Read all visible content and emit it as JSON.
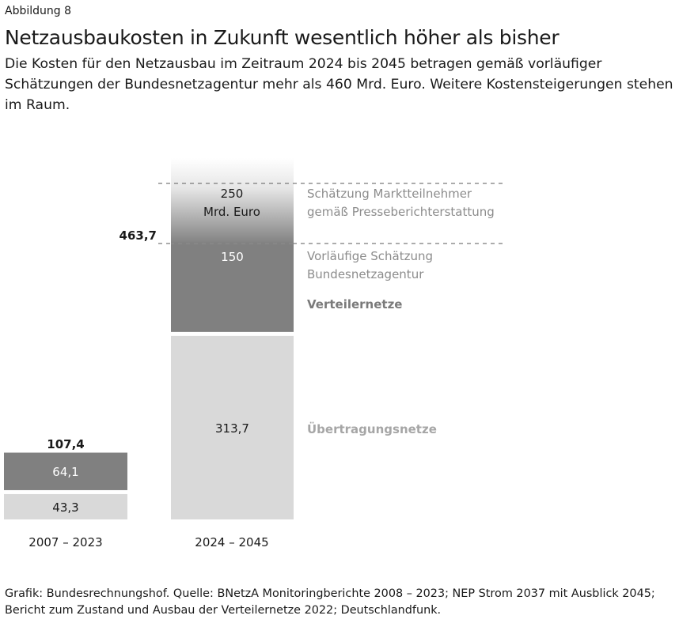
{
  "figure_label": "Abbildung 8",
  "title": "Netzausbaukosten in Zukunft wesentlich höher als bisher",
  "subtitle": "Die Kosten für den Netzausbau im Zeitraum 2024 bis 2045 betragen gemäß vorläufiger Schätzungen der Bundesnetzagentur mehr als 460 Mrd. Euro. Weitere Kostensteigerungen stehen im Raum.",
  "source": "Grafik: Bundesrechnungshof. Quelle: BNetzA Monitoringberichte 2008 – 2023; NEP Strom 2037 mit Ausblick 2045; Bericht zum Zustand und Ausbau der Verteilernetze 2022; Deutschlandfunk.",
  "colors": {
    "verteilernetze": "#808080",
    "uebertragungsnetze": "#d9d9d9",
    "label_gray": "#8c8c8c"
  },
  "chart_data": {
    "type": "bar",
    "stacked": true,
    "categories": [
      "2007 – 2023",
      "2024 – 2045"
    ],
    "series": [
      {
        "name": "Übertragungsnetze",
        "values": [
          43.3,
          313.7
        ],
        "labels": [
          "43,3",
          "313,7"
        ]
      },
      {
        "name": "Verteilernetze",
        "values": [
          64.1,
          150
        ],
        "labels": [
          "64,1",
          "150"
        ]
      }
    ],
    "totals": [
      "107,4",
      "463,7"
    ],
    "estimate": {
      "value": 250,
      "label": "250",
      "unit": "Mrd. Euro",
      "category": "2024 – 2045"
    },
    "annotations": {
      "estimate_market": [
        "Schätzung Marktteilnehmer",
        "gemäß Presseberichterstattung"
      ],
      "estimate_bnetza": [
        "Vorläufige Schätzung",
        "Bundesnetzagentur"
      ],
      "verteilernetze": "Verteilernetze",
      "uebertragungsnetze": "Übertragungsnetze"
    },
    "grid": false
  }
}
